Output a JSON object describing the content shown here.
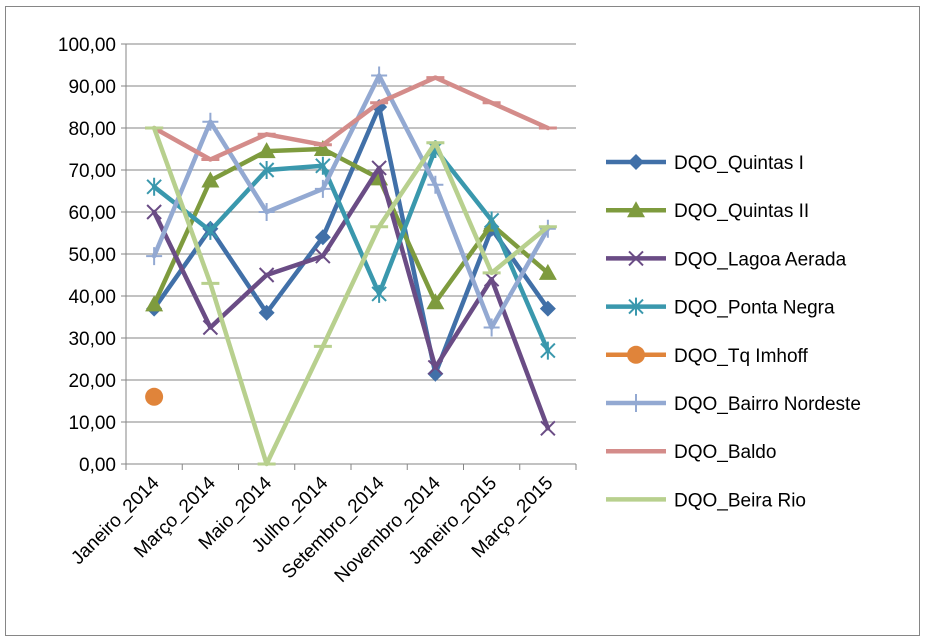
{
  "chart_data": {
    "type": "line",
    "title": "",
    "xlabel": "",
    "ylabel": "",
    "categories": [
      "Janeiro_2014",
      "Março_2014",
      "Maio_2014",
      "Julho_2014",
      "Setembro_2014",
      "Novembro_2014",
      "Janeiro_2015",
      "Março_2015"
    ],
    "ylim": [
      0,
      100
    ],
    "y_ticks": [
      "0,00",
      "10,00",
      "20,00",
      "30,00",
      "40,00",
      "50,00",
      "60,00",
      "70,00",
      "80,00",
      "90,00",
      "100,00"
    ],
    "grid": "horizontal",
    "legend_position": "right",
    "series": [
      {
        "name": "DQO_Quintas I",
        "color": "#4170A8",
        "marker": "diamond",
        "values": [
          37,
          56,
          36,
          54,
          85,
          21.5,
          56,
          37
        ]
      },
      {
        "name": "DQO_Quintas II",
        "color": "#7E9B3E",
        "marker": "triangle",
        "values": [
          38,
          67.5,
          74.5,
          75,
          68,
          38.5,
          57,
          45.5
        ]
      },
      {
        "name": "DQO_Lagoa Aerada",
        "color": "#6A4C85",
        "marker": "x",
        "values": [
          60,
          32.5,
          45,
          49.5,
          70.5,
          23,
          44,
          8.5
        ]
      },
      {
        "name": "DQO_Ponta Negra",
        "color": "#3A98AD",
        "marker": "star",
        "values": [
          66,
          55.5,
          70,
          71,
          40.5,
          75,
          58,
          27
        ]
      },
      {
        "name": "DQO_Tq Imhoff",
        "color": "#E0843A",
        "marker": "circle",
        "values": [
          16,
          null,
          null,
          null,
          null,
          null,
          null,
          null
        ]
      },
      {
        "name": "DQO_Bairro Nordeste",
        "color": "#93A9D2",
        "marker": "plus",
        "values": [
          49.5,
          81.5,
          60,
          65.5,
          92.5,
          66.5,
          32.5,
          56
        ]
      },
      {
        "name": "DQO_Baldo",
        "color": "#D48C8A",
        "marker": "dash",
        "values": [
          80,
          72.5,
          78.5,
          76,
          86,
          92,
          86,
          80
        ]
      },
      {
        "name": "DQO_Beira Rio",
        "color": "#B8D08E",
        "marker": "dash",
        "values": [
          80,
          43,
          0,
          28,
          56.5,
          76.5,
          45.5,
          56.5
        ]
      }
    ]
  }
}
